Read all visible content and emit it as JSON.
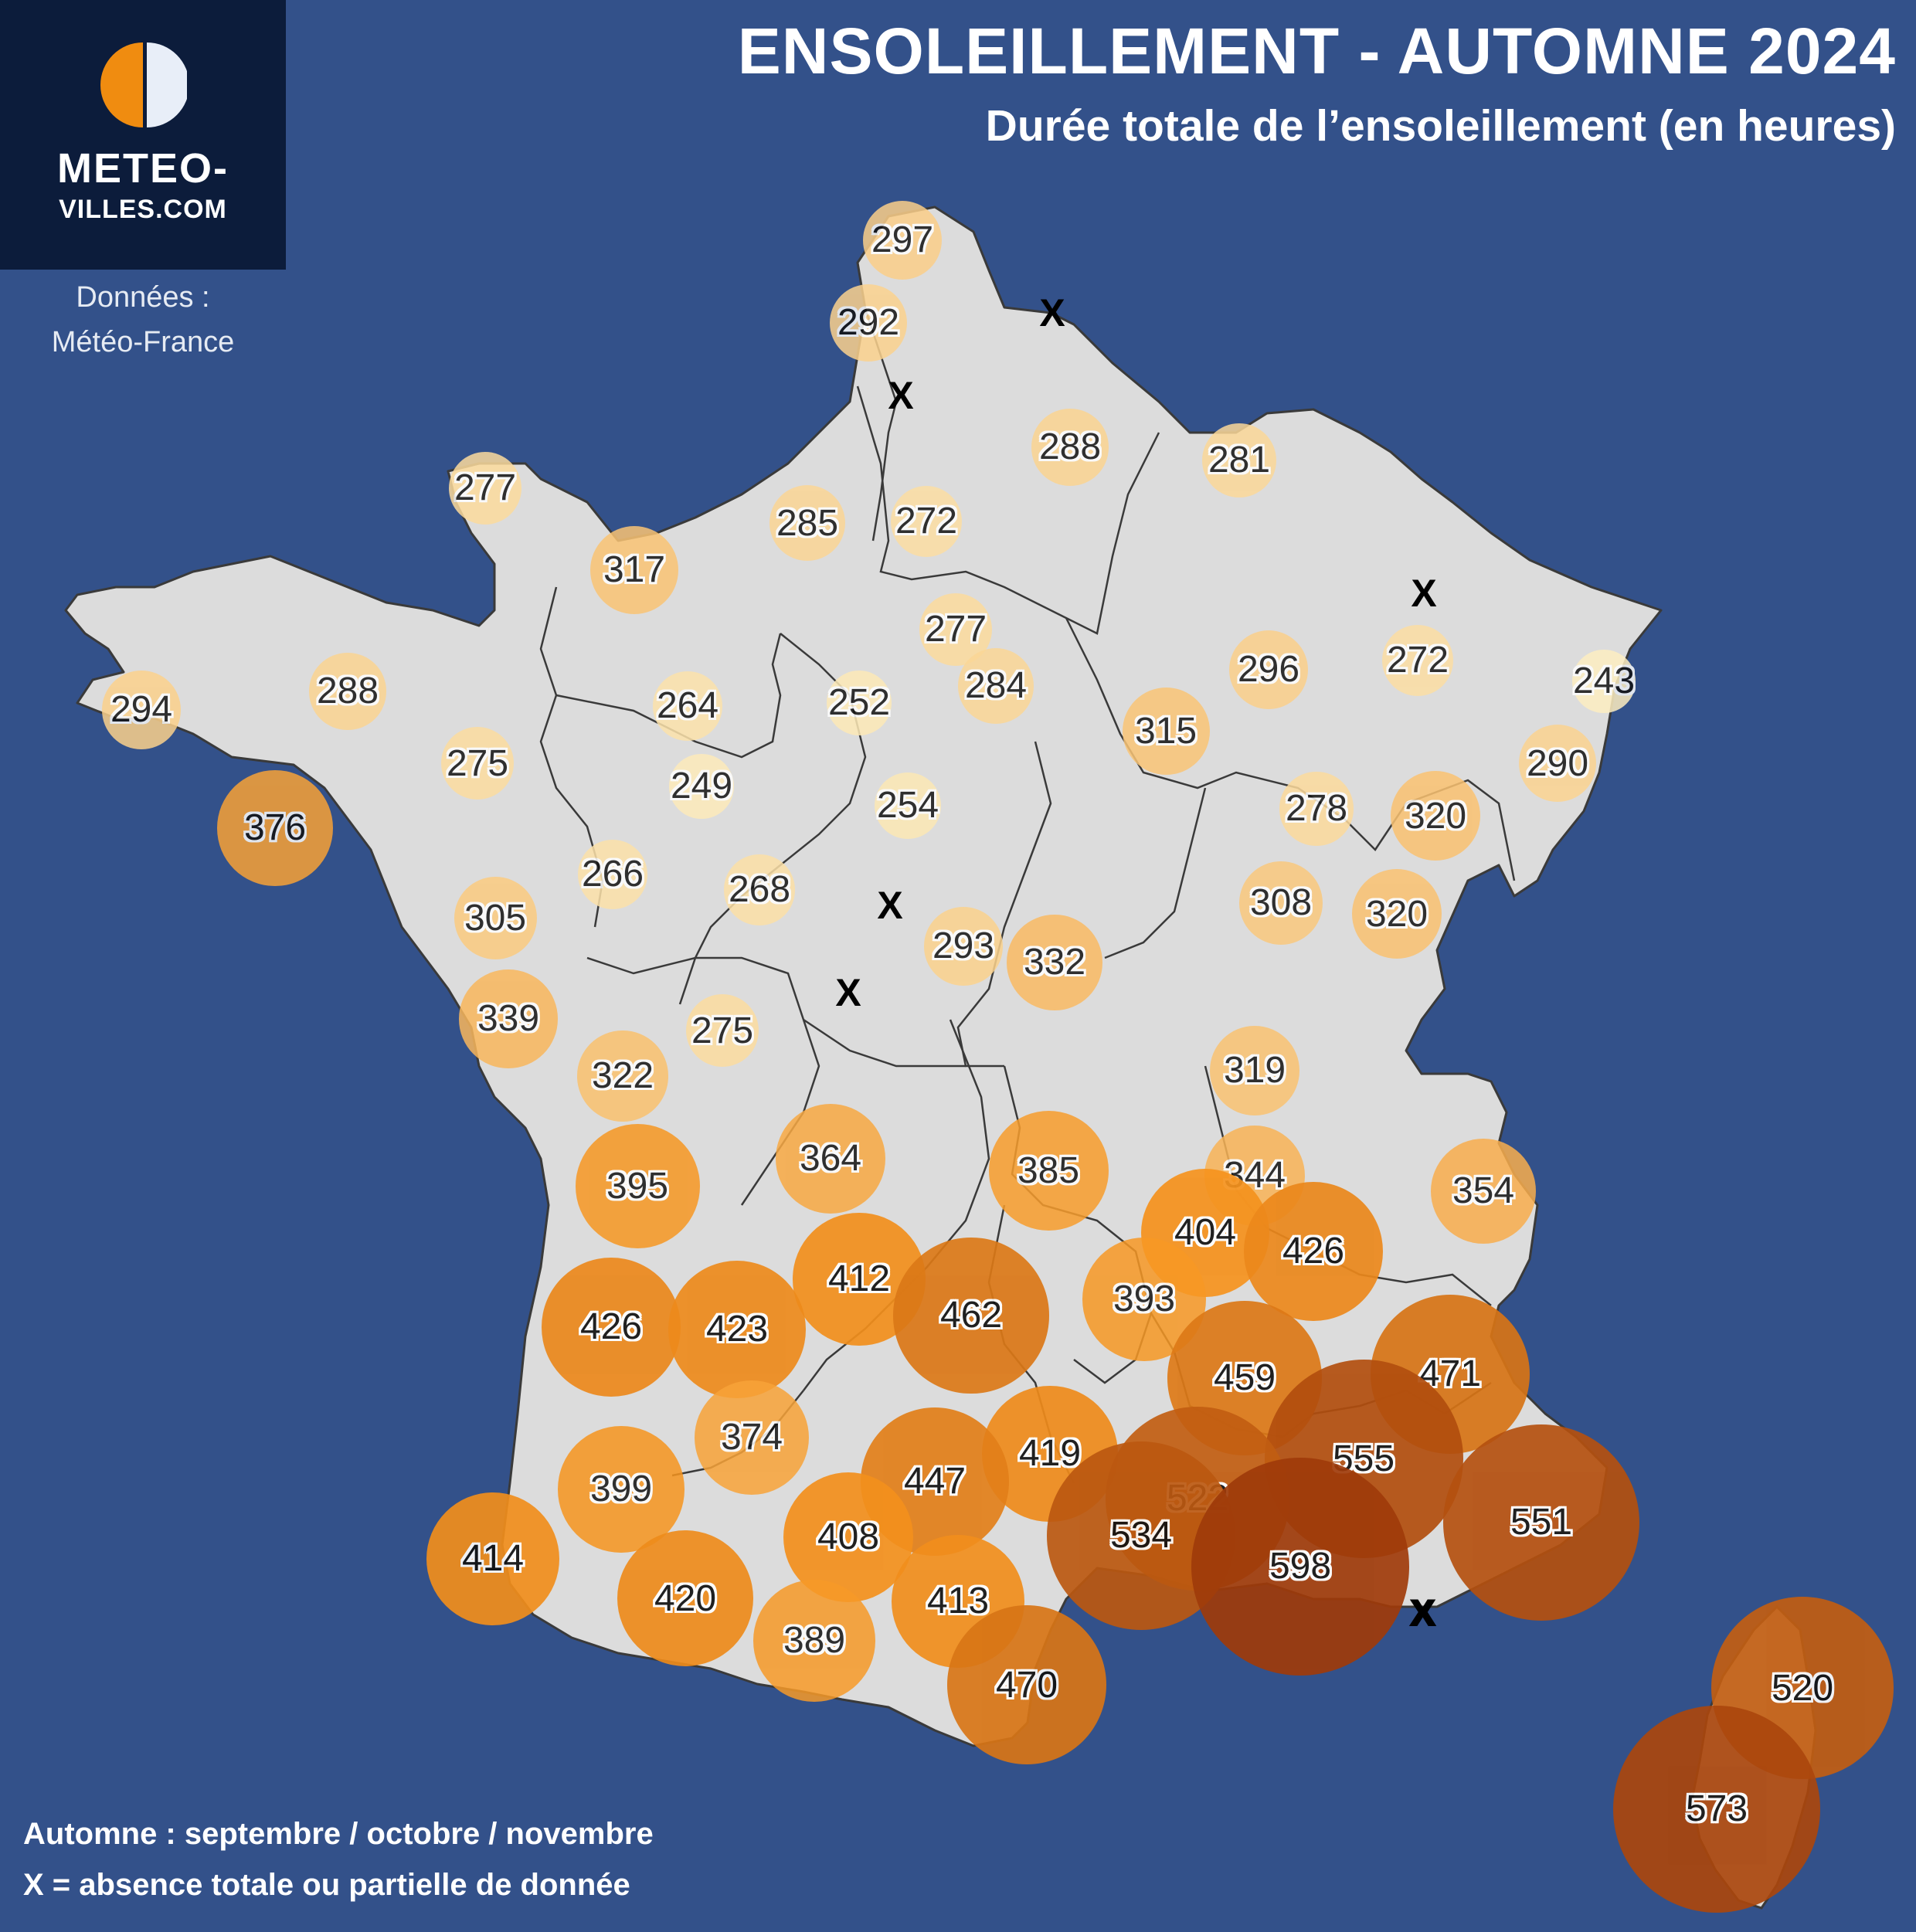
{
  "header": {
    "title": "ENSOLEILLEMENT - AUTOMNE 2024",
    "subtitle": "Durée totale de l’ensoleillement (en heures)"
  },
  "logo": {
    "icon": "half-sun-half-moon-icon",
    "line1": "METEO-",
    "line2": "VILLES.COM"
  },
  "source": {
    "label": "Données :",
    "value": "Météo-France"
  },
  "footnotes": {
    "season": "Automne : septembre / octobre / novembre",
    "missing_legend": "X = absence totale ou partielle de donnée"
  },
  "missing_symbol": "X",
  "colors": {
    "ocean": "#33518a",
    "land": "#dcdcdc",
    "border": "#3a3a3a",
    "logo_bg": "#0c1c3b",
    "scale_low": "#fdf0c4",
    "scale_mid": "#f7941d",
    "scale_high": "#9e3a0a"
  },
  "stations": [
    {
      "value": 297
    },
    {
      "value": 292
    },
    {
      "value": 288
    },
    {
      "value": 281
    },
    {
      "value": 277
    },
    {
      "value": 285
    },
    {
      "value": 272
    },
    {
      "value": 317
    },
    {
      "value": 277
    },
    {
      "value": 284
    },
    {
      "value": 296
    },
    {
      "value": 272
    },
    {
      "value": 243
    },
    {
      "value": 294
    },
    {
      "value": 288
    },
    {
      "value": 264
    },
    {
      "value": 252
    },
    {
      "value": 275
    },
    {
      "value": 249
    },
    {
      "value": 315
    },
    {
      "value": 290
    },
    {
      "value": 254
    },
    {
      "value": 278
    },
    {
      "value": 320
    },
    {
      "value": 376
    },
    {
      "value": 266
    },
    {
      "value": 268
    },
    {
      "value": 305
    },
    {
      "value": 308
    },
    {
      "value": 320
    },
    {
      "value": 293
    },
    {
      "value": 332
    },
    {
      "value": 339
    },
    {
      "value": 275
    },
    {
      "value": 322
    },
    {
      "value": 319
    },
    {
      "value": 395
    },
    {
      "value": 364
    },
    {
      "value": 385
    },
    {
      "value": 344
    },
    {
      "value": 354
    },
    {
      "value": 404
    },
    {
      "value": 426
    },
    {
      "value": 412
    },
    {
      "value": 462
    },
    {
      "value": 393
    },
    {
      "value": 426
    },
    {
      "value": 423
    },
    {
      "value": 459
    },
    {
      "value": 471
    },
    {
      "value": 374
    },
    {
      "value": 419
    },
    {
      "value": 555
    },
    {
      "value": 399
    },
    {
      "value": 447
    },
    {
      "value": 522
    },
    {
      "value": 551
    },
    {
      "value": 534
    },
    {
      "value": 408
    },
    {
      "value": 414
    },
    {
      "value": 420
    },
    {
      "value": 598
    },
    {
      "value": 413
    },
    {
      "value": 389
    },
    {
      "value": 470
    },
    {
      "value": 520
    },
    {
      "value": 573
    }
  ],
  "missing_count": 7
}
